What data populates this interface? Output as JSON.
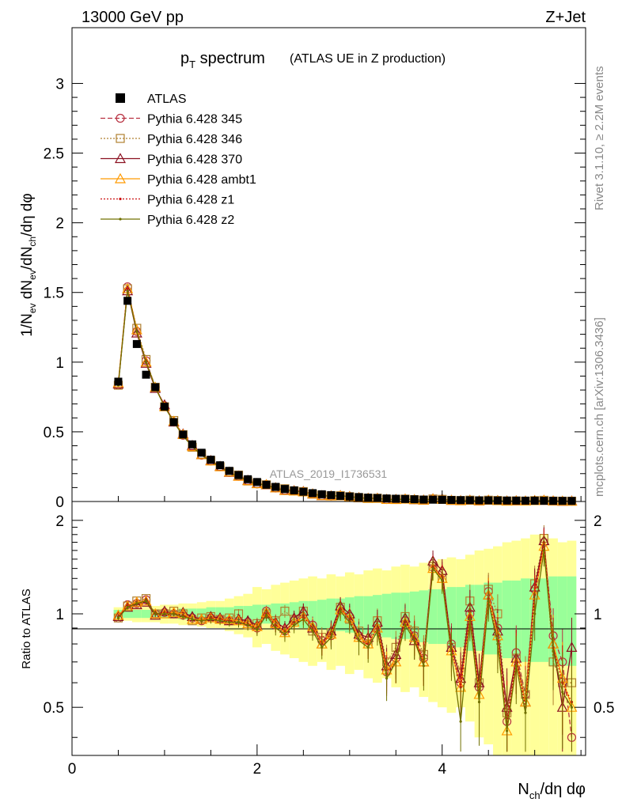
{
  "header": {
    "left": "13000 GeV pp",
    "right": "Z+Jet"
  },
  "side_labels": {
    "rivet": "Rivet 3.1.10, ≥ 2.2M events",
    "mcplots": "mcplots.cern.ch [arXiv:1306.3436]"
  },
  "watermark": "ATLAS_2019_I1736531",
  "chart_data": [
    {
      "panel": "main",
      "type": "line",
      "title_main": "p",
      "title_sub": "T",
      "title_rest": " spectrum",
      "title_note": "(ATLAS UE in Z production)",
      "ylabel": "1/N_ev dN_ev/dN_ch/dη dφ",
      "xlim": [
        0,
        5.55
      ],
      "ylim": [
        0,
        3.4
      ],
      "yticks": [
        0,
        0.5,
        1,
        1.5,
        2,
        2.5,
        3
      ],
      "ytick_labels": [
        "0",
        "0.5",
        "1",
        "1.5",
        "2",
        "2.5",
        "3"
      ],
      "x": [
        0.5,
        0.6,
        0.7,
        0.8,
        0.9,
        1.0,
        1.1,
        1.2,
        1.3,
        1.4,
        1.5,
        1.6,
        1.7,
        1.8,
        1.9,
        2.0,
        2.1,
        2.2,
        2.3,
        2.4,
        2.5,
        2.6,
        2.7,
        2.8,
        2.9,
        3.0,
        3.1,
        3.2,
        3.3,
        3.4,
        3.5,
        3.6,
        3.7,
        3.8,
        3.9,
        4.0,
        4.1,
        4.2,
        4.3,
        4.4,
        4.5,
        4.6,
        4.7,
        4.8,
        4.9,
        5.0,
        5.1,
        5.2,
        5.3,
        5.4
      ],
      "data": {
        "name": "ATLAS",
        "values": [
          0.86,
          1.44,
          1.13,
          0.91,
          0.82,
          0.68,
          0.57,
          0.48,
          0.41,
          0.35,
          0.3,
          0.26,
          0.22,
          0.19,
          0.16,
          0.14,
          0.12,
          0.105,
          0.09,
          0.08,
          0.07,
          0.06,
          0.052,
          0.046,
          0.04,
          0.036,
          0.032,
          0.028,
          0.025,
          0.022,
          0.02,
          0.018,
          0.016,
          0.014,
          0.013,
          0.012,
          0.011,
          0.01,
          0.009,
          0.0085,
          0.008,
          0.0075,
          0.007,
          0.0065,
          0.006,
          0.0055,
          0.005,
          0.0048,
          0.0045,
          0.0042
        ]
      },
      "series": [
        {
          "name": "Pythia 6.428 345",
          "color": "#b83040",
          "dash": "6,3",
          "marker": "circle"
        },
        {
          "name": "Pythia 6.428 346",
          "color": "#b08030",
          "dash": "2,2",
          "marker": "square"
        },
        {
          "name": "Pythia 6.428 370",
          "color": "#8b1020",
          "dash": "",
          "marker": "triangle"
        },
        {
          "name": "Pythia 6.428 ambt1",
          "color": "#ff9a00",
          "dash": "",
          "marker": "triangle"
        },
        {
          "name": "Pythia 6.428 z1",
          "color": "#cc1010",
          "dash": "2,2",
          "marker": "dot"
        },
        {
          "name": "Pythia 6.428 z2",
          "color": "#707000",
          "dash": "",
          "marker": "dot"
        }
      ]
    },
    {
      "panel": "ratio",
      "type": "line",
      "ylabel": "Ratio to ATLAS",
      "xlabel": "N_ch/dη dφ",
      "xlim": [
        0,
        5.55
      ],
      "ylim": [
        0.35,
        2.3
      ],
      "xticks": [
        0,
        2,
        4
      ],
      "xtick_labels": [
        "0",
        "2",
        "4"
      ],
      "yticks": [
        0.5,
        1,
        2
      ],
      "ytick_labels": [
        "0.5",
        "1",
        "2"
      ],
      "band_inner": [
        0.03,
        0.03,
        0.03,
        0.03,
        0.03,
        0.03,
        0.03,
        0.04,
        0.04,
        0.04,
        0.05,
        0.05,
        0.05,
        0.06,
        0.06,
        0.07,
        0.07,
        0.08,
        0.08,
        0.09,
        0.1,
        0.1,
        0.11,
        0.12,
        0.12,
        0.13,
        0.14,
        0.14,
        0.15,
        0.16,
        0.17,
        0.17,
        0.18,
        0.19,
        0.2,
        0.2,
        0.22,
        0.22,
        0.24,
        0.24,
        0.26,
        0.26,
        0.28,
        0.28,
        0.3,
        0.3,
        0.3,
        0.32,
        0.32,
        0.32
      ],
      "band_outer": [
        0.05,
        0.05,
        0.06,
        0.06,
        0.06,
        0.07,
        0.07,
        0.08,
        0.08,
        0.09,
        0.1,
        0.1,
        0.12,
        0.14,
        0.16,
        0.22,
        0.2,
        0.24,
        0.26,
        0.28,
        0.3,
        0.32,
        0.3,
        0.34,
        0.32,
        0.36,
        0.34,
        0.38,
        0.4,
        0.38,
        0.42,
        0.44,
        0.42,
        0.46,
        0.48,
        0.5,
        0.52,
        0.5,
        0.55,
        0.6,
        0.62,
        0.65,
        0.7,
        0.72,
        0.75,
        0.8,
        0.8,
        0.75,
        0.7,
        0.72
      ],
      "series_ratios": [
        [
          0.97,
          1.07,
          1.08,
          1.11,
          1.0,
          1.01,
          1.0,
          0.99,
          0.97,
          0.95,
          0.97,
          0.96,
          0.95,
          0.95,
          0.94,
          0.9,
          1.02,
          0.92,
          0.88,
          0.95,
          1.0,
          0.92,
          0.82,
          0.85,
          1.04,
          0.98,
          0.85,
          0.82,
          0.92,
          0.65,
          0.72,
          0.95,
          0.85,
          0.72,
          1.45,
          1.35,
          0.8,
          0.6,
          1.0,
          0.58,
          1.18,
          0.9,
          0.45,
          0.75,
          0.55,
          1.2,
          1.7,
          0.85,
          0.7,
          0.4
        ],
        [
          0.97,
          1.06,
          1.1,
          1.12,
          1.0,
          1.0,
          1.02,
          1.0,
          0.95,
          0.97,
          0.98,
          0.96,
          0.97,
          1.0,
          0.92,
          0.93,
          1.0,
          0.95,
          1.02,
          0.96,
          1.02,
          0.88,
          0.84,
          0.87,
          1.05,
          0.96,
          0.88,
          0.8,
          0.95,
          0.7,
          0.78,
          0.98,
          0.88,
          0.74,
          1.42,
          1.3,
          0.78,
          0.65,
          1.1,
          0.6,
          1.2,
          1.0,
          0.48,
          0.72,
          0.55,
          1.25,
          1.75,
          0.7,
          0.6,
          0.6
        ],
        [
          0.98,
          1.05,
          1.07,
          1.09,
          0.99,
          1.02,
          1.0,
          1.01,
          0.98,
          0.96,
          0.98,
          0.97,
          0.95,
          0.96,
          0.95,
          0.92,
          1.0,
          0.94,
          0.9,
          0.97,
          1.02,
          0.9,
          0.8,
          0.88,
          1.06,
          1.0,
          0.86,
          0.84,
          0.94,
          0.68,
          0.74,
          0.97,
          0.82,
          0.7,
          1.48,
          1.38,
          0.78,
          0.62,
          1.05,
          0.6,
          1.15,
          0.88,
          0.5,
          0.72,
          0.52,
          1.22,
          1.72,
          0.8,
          0.5,
          0.78
        ],
        [
          0.99,
          1.06,
          1.09,
          1.1,
          1.0,
          1.0,
          1.01,
          1.0,
          0.96,
          0.96,
          0.97,
          0.96,
          0.96,
          0.95,
          0.93,
          0.91,
          1.01,
          0.93,
          0.87,
          0.94,
          0.98,
          0.91,
          0.8,
          0.86,
          1.03,
          0.97,
          0.84,
          0.8,
          0.9,
          0.66,
          0.7,
          0.94,
          0.84,
          0.7,
          1.4,
          1.3,
          0.76,
          0.58,
          0.98,
          0.55,
          1.15,
          0.85,
          0.42,
          0.7,
          0.52,
          1.15,
          1.65,
          0.8,
          0.62,
          0.5
        ],
        [
          0.98,
          1.06,
          1.08,
          1.1,
          1.0,
          1.01,
          1.0,
          0.99,
          0.96,
          0.95,
          0.97,
          0.96,
          0.95,
          0.94,
          0.93,
          0.9,
          1.0,
          0.92,
          0.88,
          0.94,
          0.98,
          0.9,
          0.8,
          0.86,
          1.04,
          0.96,
          0.82,
          0.8,
          0.9,
          0.64,
          0.7,
          0.94,
          0.84,
          0.7,
          1.42,
          1.32,
          0.76,
          0.58,
          0.98,
          0.55,
          1.12,
          0.82,
          0.44,
          0.72,
          0.5,
          1.15,
          1.7,
          0.78,
          0.6,
          0.52
        ],
        [
          0.97,
          1.05,
          1.08,
          1.1,
          1.0,
          1.0,
          1.0,
          0.98,
          0.96,
          0.95,
          0.96,
          0.95,
          0.94,
          0.94,
          0.92,
          0.89,
          0.99,
          0.9,
          0.86,
          0.92,
          0.96,
          0.88,
          0.78,
          0.84,
          1.02,
          0.94,
          0.82,
          0.78,
          0.88,
          0.62,
          0.7,
          0.92,
          0.82,
          0.68,
          1.4,
          1.28,
          0.74,
          0.45,
          0.96,
          0.52,
          1.1,
          0.8,
          0.42,
          0.68,
          0.48,
          1.0,
          1.6,
          0.76,
          0.56,
          0.5
        ]
      ]
    }
  ]
}
